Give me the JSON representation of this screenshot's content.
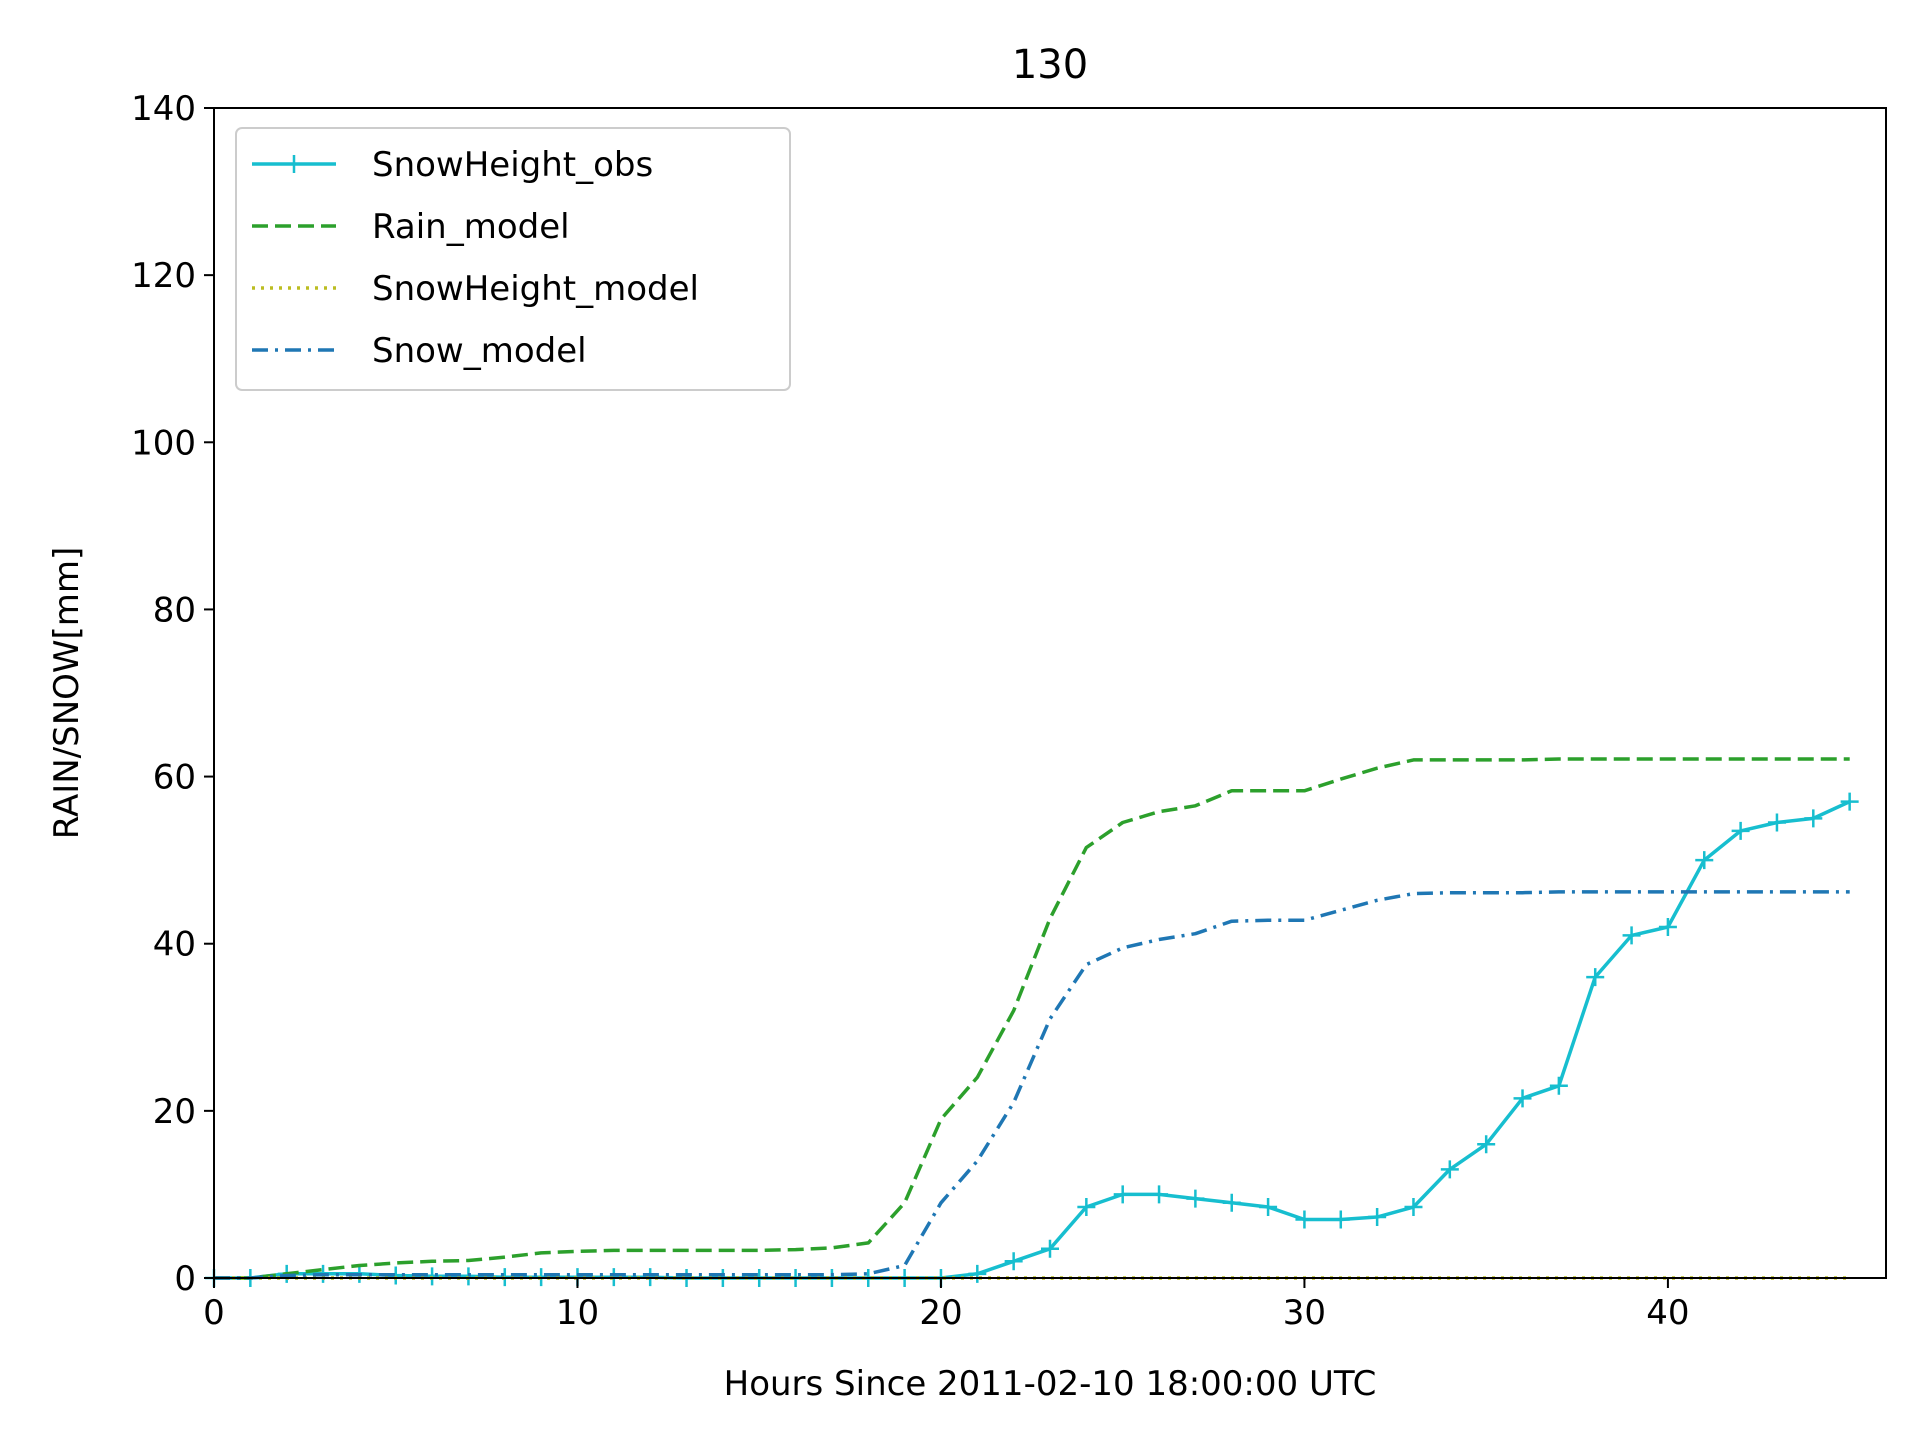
{
  "chart_data": {
    "type": "line",
    "title": "130",
    "xlabel": "Hours Since 2011-02-10 18:00:00 UTC",
    "ylabel": "RAIN/SNOW[mm]",
    "xlim": [
      0,
      46
    ],
    "ylim": [
      0,
      140
    ],
    "xticks": [
      0,
      10,
      20,
      30,
      40
    ],
    "yticks": [
      0,
      20,
      40,
      60,
      80,
      100,
      120,
      140
    ],
    "grid": false,
    "legend_position": "top-left",
    "series": [
      {
        "name": "SnowHeight_obs",
        "color": "#17becf",
        "style": "solid",
        "marker": "plus",
        "x": [
          0,
          1,
          2,
          3,
          4,
          5,
          6,
          7,
          8,
          9,
          10,
          11,
          12,
          13,
          14,
          15,
          16,
          17,
          18,
          19,
          20,
          21,
          22,
          23,
          24,
          25,
          26,
          27,
          28,
          29,
          30,
          31,
          32,
          33,
          34,
          35,
          36,
          37,
          38,
          39,
          40,
          41,
          42,
          43,
          44,
          45
        ],
        "y": [
          0,
          0,
          0.5,
          0.5,
          0.5,
          0.3,
          0.2,
          0.2,
          0.1,
          0.1,
          0.1,
          0.1,
          0.1,
          0,
          0,
          0,
          0,
          0,
          0,
          0,
          0,
          0.5,
          2,
          3.5,
          8.5,
          10,
          10,
          9.5,
          9,
          8.5,
          7,
          7,
          7.3,
          8.5,
          13,
          16,
          21.5,
          23,
          36,
          41,
          42,
          50,
          53.5,
          54.5,
          55,
          57
        ]
      },
      {
        "name": "Rain_model",
        "color": "#2ca02c",
        "style": "dashed",
        "x": [
          0,
          1,
          2,
          3,
          4,
          5,
          6,
          7,
          8,
          9,
          10,
          11,
          12,
          13,
          14,
          15,
          16,
          17,
          18,
          19,
          20,
          21,
          22,
          23,
          24,
          25,
          26,
          27,
          28,
          29,
          30,
          31,
          32,
          33,
          34,
          35,
          36,
          37,
          38,
          39,
          40,
          41,
          42,
          43,
          44,
          45
        ],
        "y": [
          0,
          0,
          0.5,
          1,
          1.5,
          1.8,
          2,
          2.1,
          2.5,
          3,
          3.2,
          3.3,
          3.3,
          3.3,
          3.3,
          3.3,
          3.4,
          3.6,
          4.2,
          9,
          19,
          24,
          32,
          43,
          51.5,
          54.5,
          55.8,
          56.5,
          58.3,
          58.3,
          58.3,
          59.7,
          61,
          62,
          62,
          62,
          62,
          62.1,
          62.1,
          62.1,
          62.1,
          62.1,
          62.1,
          62.1,
          62.1,
          62.1
        ]
      },
      {
        "name": "SnowHeight_model",
        "color": "#bcbd22",
        "style": "dotted",
        "x": [
          0,
          45
        ],
        "y": [
          0,
          0
        ]
      },
      {
        "name": "Snow_model",
        "color": "#1f77b4",
        "style": "dashdot",
        "x": [
          0,
          1,
          2,
          3,
          4,
          5,
          6,
          7,
          8,
          9,
          10,
          11,
          12,
          13,
          14,
          15,
          16,
          17,
          18,
          19,
          20,
          21,
          22,
          23,
          24,
          25,
          26,
          27,
          28,
          29,
          30,
          31,
          32,
          33,
          34,
          35,
          36,
          37,
          38,
          39,
          40,
          41,
          42,
          43,
          44,
          45
        ],
        "y": [
          0,
          0,
          0.3,
          0.4,
          0.4,
          0.4,
          0.4,
          0.4,
          0.4,
          0.4,
          0.4,
          0.4,
          0.4,
          0.4,
          0.4,
          0.4,
          0.4,
          0.4,
          0.5,
          1.5,
          9,
          14,
          21,
          31,
          37.5,
          39.5,
          40.5,
          41.2,
          42.7,
          42.8,
          42.8,
          44,
          45.2,
          46,
          46.1,
          46.1,
          46.1,
          46.2,
          46.2,
          46.2,
          46.2,
          46.2,
          46.2,
          46.2,
          46.2,
          46.2
        ]
      }
    ]
  }
}
